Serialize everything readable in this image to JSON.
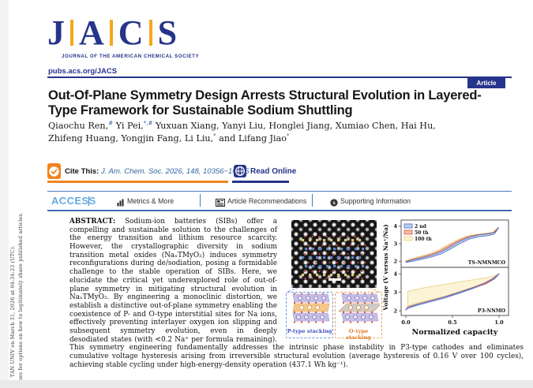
{
  "colors": {
    "navy": "#27348b",
    "gold": "#f5a81c",
    "orange": "#f0851f",
    "link_blue": "#3465a4",
    "access_blue": "#68abe0",
    "rule_blue": "#3c6eb4"
  },
  "sidebar": {
    "note_line1": "TAN UNIV on March 31, 2026 at 04:34:23 (UTC).",
    "note_line2": "lines for options on how to legitimately share published articles."
  },
  "masthead": {
    "letters": [
      "J",
      "A",
      "C",
      "S"
    ],
    "subtitle": "JOURNAL OF THE AMERICAN CHEMICAL SOCIETY",
    "url": "pubs.acs.org/JACS",
    "badge": "Article"
  },
  "article": {
    "title": "Out-Of-Plane Symmetry Design Arrests Structural Evolution in Layered-Type Framework for Sustainable Sodium Shuttling",
    "author_lines": [
      [
        {
          "t": "Qiaochu Ren,"
        },
        {
          "s": "#"
        },
        {
          "t": " Yi Pei,"
        },
        {
          "s": "*,#"
        },
        {
          "t": " Yuxuan Xiang, Yanyi Liu, Honglei Jiang, Xumiao Chen, Hai Hu,"
        }
      ],
      [
        {
          "t": "Zhifeng Huang, Yongjin Fang, Li Liu,"
        },
        {
          "s": "*"
        },
        {
          "t": " and Lifang Jiao"
        },
        {
          "s": "*"
        }
      ]
    ]
  },
  "cite": {
    "label": "Cite This:",
    "reference": "J. Am. Chem. Soc. 2026, 148, 10356−10365",
    "read_online": "Read Online"
  },
  "access_bar": {
    "access": "ACCESS",
    "metrics": "Metrics & More",
    "recommendations": "Article Recommendations",
    "supporting": "Supporting Information"
  },
  "abstract": {
    "label": "ABSTRACT:",
    "text": " Sodium-ion batteries (SIBs) offer a compelling and sustainable solution to the challenges of the energy transition and lithium resource scarcity. However, the crystallographic diversity in sodium transition metal oxides (NaₓTMyO₂) induces symmetry reconfigurations during de/sodiation, posing a formidable challenge to the stable operation of SIBs. Here, we elucidate the critical yet underexplored role of out-of-plane symmetry in mitigating structural evolution in NaₓTMyO₂. By engineering a monoclinic distortion, we establish a distinctive out-of-plane symmetry enabling the coexistence of P- and O-type interstitial sites for Na ions, effectively preventing interlayer oxygen ion slipping and subsequent symmetry evolution, even in deeply desodiated states (with <0.2 Na⁺ per formula remaining). This symmetry engineering fundamentally addresses the intrinsic phase instability in P3-type cathodes and eliminates cumulative voltage hysteresis arising from irreversible structural evolution (average hysteresis of 0.16 V over 100 cycles), achieving stable cycling under high-energy-density operation (437.1 Wh kg⁻¹)."
  },
  "graphic": {
    "p_label": "P-type stacking",
    "o_label": "O-type stacking"
  },
  "chart_data": {
    "type": "line",
    "title": "",
    "ylabel": "Voltage (V versus Na⁺/Na)",
    "x": {
      "label": "Normalized capacity",
      "ticks": [
        "0.0",
        "0.5",
        "1.0"
      ],
      "lim": [
        -0.05,
        1.1
      ]
    },
    "legend": [
      {
        "label": "2 nd",
        "fill": "#bccdf0",
        "stroke": "#5b7bc8"
      },
      {
        "label": "50 th",
        "fill": "#f4bcaa",
        "stroke": "#d96a50"
      },
      {
        "label": "100 th",
        "fill": "#fbf3d3",
        "stroke": "#ead585"
      }
    ],
    "panels": [
      {
        "label": "TS-NMNMCO",
        "ylim": [
          1.65,
          4.35
        ],
        "y_ticks": [
          2,
          3,
          4
        ],
        "loops": [
          {
            "name": "2 nd",
            "fill": "#bccdf0",
            "stroke": "#5b7bc8",
            "points": [
              [
                0,
                1.97
              ],
              [
                0.08,
                2.08
              ],
              [
                0.18,
                2.2
              ],
              [
                0.28,
                2.34
              ],
              [
                0.38,
                2.54
              ],
              [
                0.48,
                2.84
              ],
              [
                0.58,
                3.14
              ],
              [
                0.68,
                3.37
              ],
              [
                0.78,
                3.5
              ],
              [
                0.88,
                3.56
              ],
              [
                0.95,
                3.63
              ],
              [
                1.0,
                3.93
              ],
              [
                0.95,
                3.55
              ],
              [
                0.88,
                3.46
              ],
              [
                0.78,
                3.39
              ],
              [
                0.68,
                3.26
              ],
              [
                0.58,
                3.0
              ],
              [
                0.48,
                2.7
              ],
              [
                0.38,
                2.42
              ],
              [
                0.28,
                2.25
              ],
              [
                0.18,
                2.12
              ],
              [
                0.08,
                2.0
              ],
              [
                0,
                1.93
              ]
            ]
          },
          {
            "name": "50 th",
            "fill": "#f4bcaa",
            "stroke": "#d96a50",
            "points": [
              [
                0,
                2.0
              ],
              [
                0.06,
                2.1
              ],
              [
                0.16,
                2.23
              ],
              [
                0.26,
                2.38
              ],
              [
                0.36,
                2.58
              ],
              [
                0.46,
                2.88
              ],
              [
                0.56,
                3.17
              ],
              [
                0.66,
                3.39
              ],
              [
                0.76,
                3.51
              ],
              [
                0.86,
                3.57
              ],
              [
                0.94,
                3.64
              ],
              [
                0.99,
                3.9
              ],
              [
                0.93,
                3.54
              ],
              [
                0.86,
                3.47
              ],
              [
                0.76,
                3.4
              ],
              [
                0.66,
                3.28
              ],
              [
                0.56,
                3.03
              ],
              [
                0.46,
                2.74
              ],
              [
                0.36,
                2.46
              ],
              [
                0.26,
                2.28
              ],
              [
                0.16,
                2.15
              ],
              [
                0.06,
                2.03
              ],
              [
                0,
                1.96
              ]
            ]
          },
          {
            "name": "100 th",
            "fill": "#fbf3d3",
            "stroke": "#ead585",
            "points": [
              [
                0,
                2.02
              ],
              [
                0.05,
                2.12
              ],
              [
                0.14,
                2.26
              ],
              [
                0.24,
                2.41
              ],
              [
                0.34,
                2.62
              ],
              [
                0.44,
                2.92
              ],
              [
                0.54,
                3.2
              ],
              [
                0.64,
                3.41
              ],
              [
                0.74,
                3.52
              ],
              [
                0.84,
                3.58
              ],
              [
                0.93,
                3.65
              ],
              [
                0.98,
                3.88
              ],
              [
                0.92,
                3.52
              ],
              [
                0.84,
                3.46
              ],
              [
                0.74,
                3.4
              ],
              [
                0.64,
                3.3
              ],
              [
                0.54,
                3.06
              ],
              [
                0.44,
                2.78
              ],
              [
                0.34,
                2.5
              ],
              [
                0.24,
                2.31
              ],
              [
                0.14,
                2.18
              ],
              [
                0.05,
                2.05
              ],
              [
                0,
                1.98
              ]
            ]
          }
        ]
      },
      {
        "label": "P3-NNMO",
        "ylim": [
          1.75,
          4.35
        ],
        "y_ticks": [
          2,
          3,
          4
        ],
        "loops": [
          {
            "name": "2 nd",
            "fill": "#bccdf0",
            "stroke": "#5b7bc8",
            "points": [
              [
                0,
                2.1
              ],
              [
                0.1,
                2.27
              ],
              [
                0.25,
                2.47
              ],
              [
                0.4,
                2.67
              ],
              [
                0.55,
                2.91
              ],
              [
                0.7,
                3.17
              ],
              [
                0.82,
                3.41
              ],
              [
                0.92,
                3.67
              ],
              [
                1.0,
                3.99
              ],
              [
                0.96,
                3.77
              ],
              [
                0.88,
                3.54
              ],
              [
                0.75,
                3.29
              ],
              [
                0.6,
                3.04
              ],
              [
                0.45,
                2.79
              ],
              [
                0.3,
                2.59
              ],
              [
                0.15,
                2.39
              ],
              [
                0.04,
                2.21
              ],
              [
                0,
                2.04
              ]
            ]
          },
          {
            "name": "50 th",
            "fill": "#f4bcaa",
            "stroke": "#d96a50",
            "points": [
              [
                0.01,
                2.2
              ],
              [
                0.12,
                2.37
              ],
              [
                0.27,
                2.57
              ],
              [
                0.42,
                2.77
              ],
              [
                0.57,
                3.02
              ],
              [
                0.72,
                3.27
              ],
              [
                0.84,
                3.5
              ],
              [
                0.93,
                3.74
              ],
              [
                1.0,
                4.02
              ],
              [
                0.95,
                3.72
              ],
              [
                0.86,
                3.46
              ],
              [
                0.72,
                3.21
              ],
              [
                0.57,
                2.96
              ],
              [
                0.42,
                2.71
              ],
              [
                0.27,
                2.51
              ],
              [
                0.12,
                2.31
              ],
              [
                0.02,
                2.14
              ]
            ]
          },
          {
            "name": "100 th",
            "fill": "#fbf3d3",
            "stroke": "#ead585",
            "points": [
              [
                0.02,
                2.27
              ],
              [
                0.12,
                2.42
              ],
              [
                0.25,
                2.58
              ],
              [
                0.4,
                2.76
              ],
              [
                0.55,
                2.98
              ],
              [
                0.7,
                3.22
              ],
              [
                0.82,
                3.45
              ],
              [
                0.92,
                3.7
              ],
              [
                0.98,
                3.94
              ],
              [
                0.9,
                3.82
              ],
              [
                0.78,
                3.72
              ],
              [
                0.65,
                3.62
              ],
              [
                0.5,
                3.5
              ],
              [
                0.35,
                3.38
              ],
              [
                0.2,
                3.25
              ],
              [
                0.08,
                3.12
              ],
              [
                0.02,
                3.04
              ]
            ]
          }
        ]
      }
    ]
  }
}
